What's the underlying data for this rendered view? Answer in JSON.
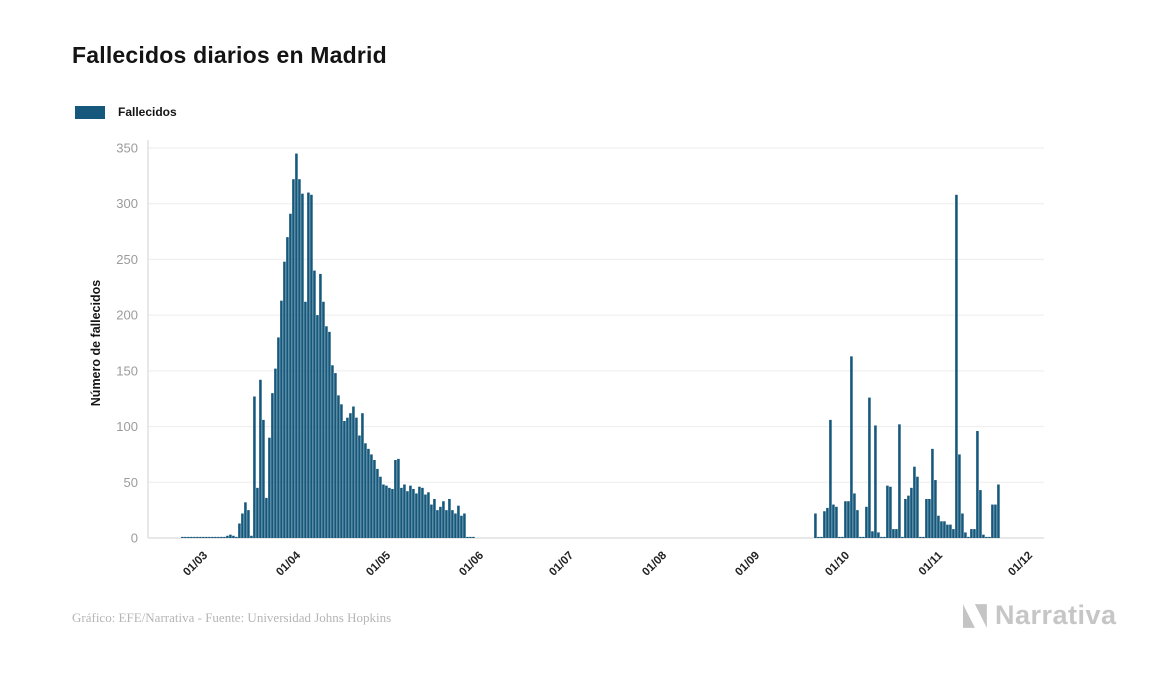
{
  "header": {
    "title_note": "title text lives in chart_data.title"
  },
  "footer": {
    "credit": "Gráfico: EFE/Narrativa - Fuente: Universidad Johns Hopkins"
  },
  "logo": {
    "text": "Narrativa"
  },
  "colors": {
    "bar": "#15587c",
    "grid": "#ededed",
    "axis": "#d2d2d2",
    "ytick_text": "#9b9b9b",
    "xtick_text": "#222222",
    "title_text": "#141414",
    "footer_text": "#b5b5b5",
    "logo_text": "#c6c6c6"
  },
  "chart_data": {
    "type": "bar",
    "title": "Fallecidos diarios en Madrid",
    "legend": [
      "Fallecidos"
    ],
    "xlabel": "",
    "ylabel": "Número de fallecidos",
    "ylim": [
      0,
      350
    ],
    "yticks": [
      0,
      50,
      100,
      150,
      200,
      250,
      300,
      350
    ],
    "grid": "horizontal",
    "legend_position": "top-left",
    "x_domain": [
      "2020-02-10",
      "2020-12-04"
    ],
    "xticks": [
      {
        "date": "2020-03-01",
        "label": "01/03"
      },
      {
        "date": "2020-04-01",
        "label": "01/04"
      },
      {
        "date": "2020-05-01",
        "label": "01/05"
      },
      {
        "date": "2020-06-01",
        "label": "01/06"
      },
      {
        "date": "2020-07-01",
        "label": "01/07"
      },
      {
        "date": "2020-08-01",
        "label": "01/08"
      },
      {
        "date": "2020-09-01",
        "label": "01/09"
      },
      {
        "date": "2020-10-01",
        "label": "01/10"
      },
      {
        "date": "2020-11-01",
        "label": "01/11"
      },
      {
        "date": "2020-12-01",
        "label": "01/12"
      }
    ],
    "series": [
      {
        "name": "Fallecidos",
        "points": [
          [
            "2020-02-21",
            1
          ],
          [
            "2020-02-22",
            1
          ],
          [
            "2020-02-23",
            1
          ],
          [
            "2020-02-24",
            1
          ],
          [
            "2020-02-25",
            1
          ],
          [
            "2020-02-26",
            1
          ],
          [
            "2020-02-27",
            1
          ],
          [
            "2020-02-28",
            1
          ],
          [
            "2020-02-29",
            1
          ],
          [
            "2020-03-01",
            1
          ],
          [
            "2020-03-02",
            1
          ],
          [
            "2020-03-03",
            1
          ],
          [
            "2020-03-04",
            1
          ],
          [
            "2020-03-05",
            1
          ],
          [
            "2020-03-06",
            1
          ],
          [
            "2020-03-07",
            2
          ],
          [
            "2020-03-08",
            3
          ],
          [
            "2020-03-09",
            2
          ],
          [
            "2020-03-10",
            1
          ],
          [
            "2020-03-11",
            13
          ],
          [
            "2020-03-12",
            22
          ],
          [
            "2020-03-13",
            32
          ],
          [
            "2020-03-14",
            25
          ],
          [
            "2020-03-15",
            2
          ],
          [
            "2020-03-16",
            127
          ],
          [
            "2020-03-17",
            45
          ],
          [
            "2020-03-18",
            142
          ],
          [
            "2020-03-19",
            106
          ],
          [
            "2020-03-20",
            36
          ],
          [
            "2020-03-21",
            90
          ],
          [
            "2020-03-22",
            130
          ],
          [
            "2020-03-23",
            152
          ],
          [
            "2020-03-24",
            180
          ],
          [
            "2020-03-25",
            213
          ],
          [
            "2020-03-26",
            248
          ],
          [
            "2020-03-27",
            270
          ],
          [
            "2020-03-28",
            291
          ],
          [
            "2020-03-29",
            322
          ],
          [
            "2020-03-30",
            345
          ],
          [
            "2020-03-31",
            322
          ],
          [
            "2020-04-01",
            309
          ],
          [
            "2020-04-02",
            212
          ],
          [
            "2020-04-03",
            310
          ],
          [
            "2020-04-04",
            308
          ],
          [
            "2020-04-05",
            240
          ],
          [
            "2020-04-06",
            200
          ],
          [
            "2020-04-07",
            237
          ],
          [
            "2020-04-08",
            212
          ],
          [
            "2020-04-09",
            190
          ],
          [
            "2020-04-10",
            185
          ],
          [
            "2020-04-11",
            155
          ],
          [
            "2020-04-12",
            148
          ],
          [
            "2020-04-13",
            128
          ],
          [
            "2020-04-14",
            120
          ],
          [
            "2020-04-15",
            105
          ],
          [
            "2020-04-16",
            108
          ],
          [
            "2020-04-17",
            112
          ],
          [
            "2020-04-18",
            118
          ],
          [
            "2020-04-19",
            108
          ],
          [
            "2020-04-20",
            92
          ],
          [
            "2020-04-21",
            112
          ],
          [
            "2020-04-22",
            85
          ],
          [
            "2020-04-23",
            80
          ],
          [
            "2020-04-24",
            75
          ],
          [
            "2020-04-25",
            70
          ],
          [
            "2020-04-26",
            62
          ],
          [
            "2020-04-27",
            55
          ],
          [
            "2020-04-28",
            48
          ],
          [
            "2020-04-29",
            47
          ],
          [
            "2020-04-30",
            45
          ],
          [
            "2020-05-01",
            44
          ],
          [
            "2020-05-02",
            70
          ],
          [
            "2020-05-03",
            71
          ],
          [
            "2020-05-04",
            45
          ],
          [
            "2020-05-05",
            48
          ],
          [
            "2020-05-06",
            42
          ],
          [
            "2020-05-07",
            47
          ],
          [
            "2020-05-08",
            44
          ],
          [
            "2020-05-09",
            40
          ],
          [
            "2020-05-10",
            46
          ],
          [
            "2020-05-11",
            45
          ],
          [
            "2020-05-12",
            39
          ],
          [
            "2020-05-13",
            41
          ],
          [
            "2020-05-14",
            30
          ],
          [
            "2020-05-15",
            35
          ],
          [
            "2020-05-16",
            25
          ],
          [
            "2020-05-17",
            28
          ],
          [
            "2020-05-18",
            33
          ],
          [
            "2020-05-19",
            25
          ],
          [
            "2020-05-20",
            35
          ],
          [
            "2020-05-21",
            25
          ],
          [
            "2020-05-22",
            22
          ],
          [
            "2020-05-23",
            29
          ],
          [
            "2020-05-24",
            20
          ],
          [
            "2020-05-25",
            22
          ],
          [
            "2020-05-26",
            1
          ],
          [
            "2020-05-27",
            1
          ],
          [
            "2020-05-28",
            1
          ],
          [
            "2020-09-19",
            22
          ],
          [
            "2020-09-20",
            1
          ],
          [
            "2020-09-21",
            1
          ],
          [
            "2020-09-22",
            24
          ],
          [
            "2020-09-23",
            27
          ],
          [
            "2020-09-24",
            106
          ],
          [
            "2020-09-25",
            30
          ],
          [
            "2020-09-26",
            28
          ],
          [
            "2020-09-27",
            1
          ],
          [
            "2020-09-28",
            1
          ],
          [
            "2020-09-29",
            33
          ],
          [
            "2020-09-30",
            33
          ],
          [
            "2020-10-01",
            163
          ],
          [
            "2020-10-02",
            40
          ],
          [
            "2020-10-03",
            25
          ],
          [
            "2020-10-04",
            1
          ],
          [
            "2020-10-05",
            1
          ],
          [
            "2020-10-06",
            28
          ],
          [
            "2020-10-07",
            126
          ],
          [
            "2020-10-08",
            6
          ],
          [
            "2020-10-09",
            101
          ],
          [
            "2020-10-10",
            5
          ],
          [
            "2020-10-11",
            1
          ],
          [
            "2020-10-12",
            1
          ],
          [
            "2020-10-13",
            47
          ],
          [
            "2020-10-14",
            46
          ],
          [
            "2020-10-15",
            8
          ],
          [
            "2020-10-16",
            8
          ],
          [
            "2020-10-17",
            102
          ],
          [
            "2020-10-18",
            1
          ],
          [
            "2020-10-19",
            35
          ],
          [
            "2020-10-20",
            38
          ],
          [
            "2020-10-21",
            45
          ],
          [
            "2020-10-22",
            64
          ],
          [
            "2020-10-23",
            55
          ],
          [
            "2020-10-24",
            1
          ],
          [
            "2020-10-25",
            1
          ],
          [
            "2020-10-26",
            35
          ],
          [
            "2020-10-27",
            35
          ],
          [
            "2020-10-28",
            80
          ],
          [
            "2020-10-29",
            52
          ],
          [
            "2020-10-30",
            20
          ],
          [
            "2020-10-31",
            15
          ],
          [
            "2020-11-01",
            15
          ],
          [
            "2020-11-02",
            12
          ],
          [
            "2020-11-03",
            12
          ],
          [
            "2020-11-04",
            8
          ],
          [
            "2020-11-05",
            308
          ],
          [
            "2020-11-06",
            75
          ],
          [
            "2020-11-07",
            22
          ],
          [
            "2020-11-08",
            5
          ],
          [
            "2020-11-09",
            1
          ],
          [
            "2020-11-10",
            8
          ],
          [
            "2020-11-11",
            8
          ],
          [
            "2020-11-12",
            96
          ],
          [
            "2020-11-13",
            43
          ],
          [
            "2020-11-14",
            3
          ],
          [
            "2020-11-15",
            1
          ],
          [
            "2020-11-16",
            1
          ],
          [
            "2020-11-17",
            30
          ],
          [
            "2020-11-18",
            30
          ],
          [
            "2020-11-19",
            48
          ]
        ]
      }
    ]
  }
}
